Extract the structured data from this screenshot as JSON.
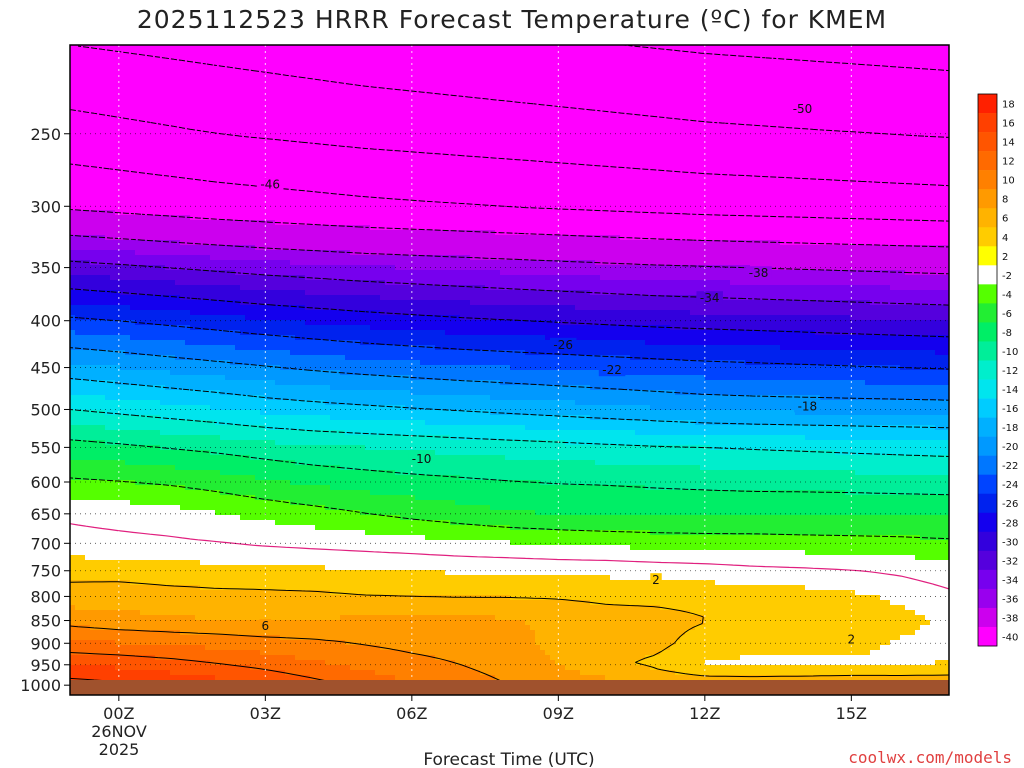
{
  "chart_data": {
    "type": "heatmap",
    "title": "2025112523 HRRR Forecast Temperature (ºC) for KMEM",
    "xlabel": "Forecast Time (UTC)",
    "ylabel": "",
    "credit": "coolwx.com/models",
    "x_ticks": [
      {
        "hour": 0,
        "label": "00Z"
      },
      {
        "hour": 3,
        "label": "03Z"
      },
      {
        "hour": 6,
        "label": "06Z"
      },
      {
        "hour": 9,
        "label": "09Z"
      },
      {
        "hour": 12,
        "label": "12Z"
      },
      {
        "hour": 15,
        "label": "15Z"
      }
    ],
    "date_label": [
      "26NOV",
      "2025"
    ],
    "xlim": [
      -1,
      17
    ],
    "y_ticks": [
      250,
      300,
      350,
      400,
      450,
      500,
      550,
      600,
      650,
      700,
      750,
      800,
      850,
      900,
      950,
      1000
    ],
    "ylim_hPa": [
      1025,
      200
    ],
    "y_scale": "log",
    "grid": true,
    "colorbar": {
      "labels": [
        18,
        16,
        14,
        12,
        10,
        8,
        6,
        4,
        2,
        -2,
        -4,
        -6,
        -8,
        -10,
        -12,
        -14,
        -16,
        -18,
        -20,
        -22,
        -24,
        -26,
        -28,
        -30,
        -32,
        -34,
        -36,
        -38,
        -40
      ],
      "colors": [
        "#ff2000",
        "#ff4000",
        "#ff5500",
        "#ff6a00",
        "#ff8000",
        "#ff9a00",
        "#ffb300",
        "#ffcc00",
        "#ffff00",
        "#ffffff",
        "#55ff00",
        "#22ee33",
        "#00ee66",
        "#00ee99",
        "#00eecc",
        "#00e5ee",
        "#00ccff",
        "#00b0ff",
        "#0099ff",
        "#0077ff",
        "#0044ff",
        "#0022ee",
        "#1400ee",
        "#3300dd",
        "#5500dd",
        "#7700ee",
        "#9900ee",
        "#cc00ee",
        "#ff00ff"
      ]
    },
    "hours": [
      -1,
      0,
      1,
      2,
      3,
      4,
      5,
      6,
      7,
      8,
      9,
      10,
      11,
      12,
      13,
      14,
      15,
      16,
      17
    ],
    "pressure_levels": [
      1000,
      950,
      900,
      850,
      800,
      750,
      700,
      650,
      600,
      550,
      500,
      450,
      400,
      350,
      300,
      250,
      200
    ],
    "temperature_c": [
      [
        17.0,
        16.5,
        15.8,
        15.0,
        14.0,
        12.8,
        11.5,
        10.2,
        9.0,
        8.0,
        7.5,
        6.8,
        6.2,
        5.8,
        5.8,
        6.0,
        6.2,
        6.0,
        5.8
      ],
      [
        14.0,
        13.6,
        13.0,
        12.2,
        11.4,
        10.4,
        9.5,
        8.7,
        8.0,
        7.2,
        6.0,
        4.5,
        3.5,
        1.8,
        1.5,
        1.5,
        1.6,
        1.8,
        2.2
      ],
      [
        10.5,
        10.1,
        9.7,
        9.3,
        8.8,
        8.4,
        7.9,
        7.4,
        7.1,
        6.6,
        5.5,
        4.7,
        4.6,
        3.0,
        2.7,
        2.6,
        2.5,
        1.8,
        1.2
      ],
      [
        7.2,
        6.6,
        6.3,
        6.1,
        5.9,
        6.2,
        6.3,
        6.3,
        6.5,
        6.2,
        5.6,
        5.0,
        4.8,
        4.1,
        3.3,
        2.9,
        3.2,
        2.7,
        1.6
      ],
      [
        5.0,
        5.2,
        4.8,
        4.6,
        4.5,
        4.4,
        4.1,
        4.0,
        3.9,
        3.9,
        3.8,
        3.5,
        3.4,
        3.3,
        3.2,
        2.9,
        2.4,
        1.6,
        0.5
      ],
      [
        3.2,
        3.1,
        2.9,
        2.7,
        2.6,
        2.4,
        2.2,
        2.0,
        1.8,
        1.7,
        1.6,
        1.5,
        1.2,
        1.0,
        0.6,
        0.4,
        0.1,
        -0.4,
        -1.2
      ],
      [
        0.8,
        0.6,
        0.4,
        0.1,
        -0.3,
        -0.6,
        -0.9,
        -1.2,
        -1.6,
        -1.9,
        -2.3,
        -2.5,
        -2.7,
        -2.9,
        -3.0,
        -3.2,
        -3.3,
        -3.4,
        -3.6
      ],
      [
        -0.4,
        -0.8,
        -1.2,
        -1.9,
        -2.6,
        -3.2,
        -3.9,
        -4.6,
        -5.2,
        -5.8,
        -6.0,
        -6.2,
        -6.3,
        -6.2,
        -6.1,
        -6.0,
        -6.0,
        -6.1,
        -6.2
      ],
      [
        -3.6,
        -3.9,
        -4.3,
        -4.9,
        -5.7,
        -6.4,
        -6.9,
        -7.3,
        -7.6,
        -7.9,
        -8.1,
        -8.2,
        -8.4,
        -8.6,
        -8.8,
        -8.9,
        -9.0,
        -9.1,
        -9.2
      ],
      [
        -7.0,
        -7.5,
        -8.1,
        -8.6,
        -9.2,
        -9.7,
        -10.0,
        -10.3,
        -10.6,
        -10.9,
        -11.2,
        -11.5,
        -11.8,
        -12.0,
        -12.2,
        -12.4,
        -12.6,
        -12.8,
        -13.0
      ],
      [
        -12.0,
        -12.6,
        -13.2,
        -13.8,
        -14.5,
        -15.0,
        -15.4,
        -15.8,
        -16.2,
        -16.6,
        -17.0,
        -17.4,
        -17.8,
        -18.2,
        -18.4,
        -18.5,
        -18.6,
        -18.7,
        -18.8
      ],
      [
        -17.4,
        -18.0,
        -18.6,
        -19.2,
        -19.8,
        -20.4,
        -20.9,
        -21.3,
        -21.7,
        -22.0,
        -22.3,
        -22.6,
        -22.9,
        -23.2,
        -23.4,
        -23.6,
        -23.8,
        -24.0,
        -24.2
      ],
      [
        -23.5,
        -24.0,
        -24.6,
        -25.2,
        -25.8,
        -26.3,
        -26.8,
        -27.2,
        -27.6,
        -27.9,
        -28.2,
        -28.5,
        -28.8,
        -29.0,
        -29.2,
        -29.4,
        -29.6,
        -29.8,
        -30.0
      ],
      [
        -31.0,
        -31.5,
        -32.0,
        -32.5,
        -33.0,
        -33.4,
        -33.8,
        -34.1,
        -34.4,
        -34.7,
        -35.0,
        -35.3,
        -35.6,
        -35.8,
        -36.0,
        -36.2,
        -36.4,
        -36.6,
        -36.8
      ],
      [
        -40.5,
        -41.0,
        -41.5,
        -42.0,
        -42.4,
        -42.8,
        -43.2,
        -43.5,
        -43.8,
        -44.1,
        -44.4,
        -44.7,
        -45.0,
        -45.3,
        -45.5,
        -45.7,
        -45.9,
        -46.1,
        -46.3
      ],
      [
        -46.5,
        -47.0,
        -47.5,
        -48.0,
        -48.4,
        -48.8,
        -49.2,
        -49.5,
        -49.8,
        -50.1,
        -50.4,
        -50.7,
        -51.0,
        -51.3,
        -51.5,
        -51.7,
        -51.9,
        -52.1,
        -52.3
      ],
      [
        -52.0,
        -52.4,
        -52.8,
        -53.2,
        -53.6,
        -54.0,
        -54.4,
        -54.7,
        -55.0,
        -55.3,
        -55.6,
        -55.9,
        -56.2,
        -56.5,
        -56.7,
        -56.9,
        -57.1,
        -57.3,
        -57.5
      ]
    ],
    "contour_labels": [
      {
        "text": "-50",
        "hour": 14.0,
        "hPa": 235
      },
      {
        "text": "-46",
        "hour": 3.1,
        "hPa": 284
      },
      {
        "text": "-38",
        "hour": 13.1,
        "hPa": 355
      },
      {
        "text": "-34",
        "hour": 12.1,
        "hPa": 378
      },
      {
        "text": "-26",
        "hour": 9.1,
        "hPa": 425
      },
      {
        "text": "-22",
        "hour": 10.1,
        "hPa": 453
      },
      {
        "text": "-18",
        "hour": 14.1,
        "hPa": 496
      },
      {
        "text": "-10",
        "hour": 6.2,
        "hPa": 566
      },
      {
        "text": "2",
        "hour": 11.0,
        "hPa": 768
      },
      {
        "text": "6",
        "hour": 3.0,
        "hPa": 862
      },
      {
        "text": "2",
        "hour": 15.0,
        "hPa": 891
      }
    ],
    "ground_color": "#a0522d"
  }
}
